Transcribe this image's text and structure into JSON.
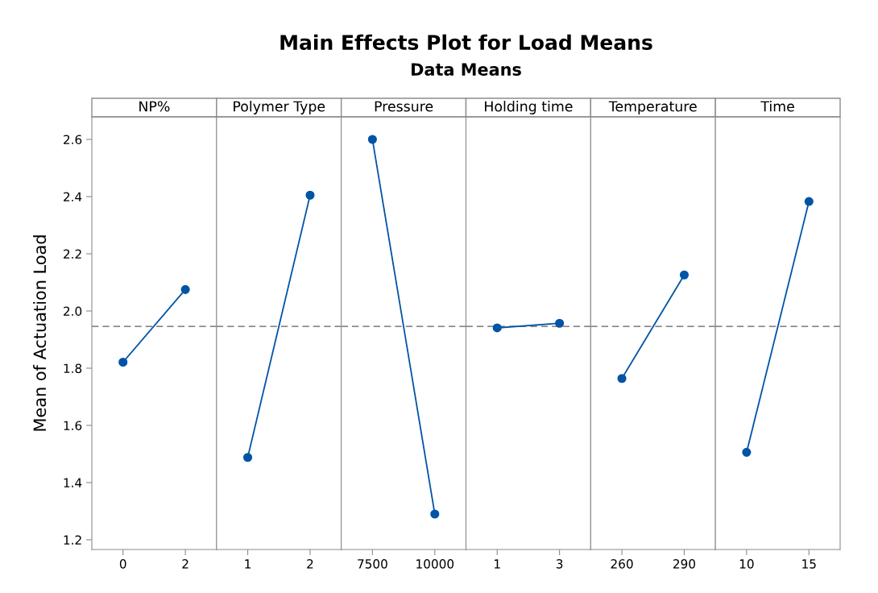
{
  "chart_data": [
    {
      "type": "other",
      "title": "Main Effects Plot for Load Means",
      "subtitle": "Data Means"
    },
    {
      "type": "line",
      "xlabel": "NP%",
      "ylabel": "Mean of Actuation Load",
      "categories": [
        "0",
        "2"
      ],
      "series": [
        {
          "color": "#0054a6",
          "values": [
            1.821,
            2.075
          ]
        }
      ],
      "ylim": [
        1.166,
        2.679
      ],
      "yticks": [
        1.2,
        1.4,
        1.6,
        1.8,
        {
          "value": 2,
          "label": "2.0"
        },
        2.2,
        2.4,
        2.6
      ],
      "ref_lines": [
        {
          "axis": "y",
          "value": 1.946,
          "color": "#8c8c8c",
          "line_style": "dashed"
        }
      ],
      "marker": "circle"
    },
    {
      "type": "line",
      "xlabel": "Polymer Type",
      "categories": [
        "1",
        "2"
      ],
      "series": [
        {
          "color": "#0054a6",
          "values": [
            1.488,
            2.405
          ]
        }
      ],
      "ylim": [
        1.166,
        2.679
      ],
      "tick_labels": "x",
      "ref_lines": [
        {
          "axis": "y",
          "value": 1.946,
          "color": "#8c8c8c",
          "line_style": "dashed"
        }
      ],
      "marker": "circle"
    },
    {
      "type": "line",
      "xlabel": "Pressure",
      "categories": [
        "7500",
        "10000"
      ],
      "series": [
        {
          "color": "#0054a6",
          "values": [
            2.6,
            1.29
          ]
        }
      ],
      "ylim": [
        1.166,
        2.679
      ],
      "tick_labels": "x",
      "ref_lines": [
        {
          "axis": "y",
          "value": 1.946,
          "color": "#8c8c8c",
          "line_style": "dashed"
        }
      ],
      "marker": "circle"
    },
    {
      "type": "line",
      "xlabel": "Holding time",
      "categories": [
        "1",
        "3"
      ],
      "series": [
        {
          "color": "#0054a6",
          "values": [
            1.941,
            1.957
          ]
        }
      ],
      "ylim": [
        1.166,
        2.679
      ],
      "tick_labels": "x",
      "ref_lines": [
        {
          "axis": "y",
          "value": 1.946,
          "color": "#8c8c8c",
          "line_style": "dashed"
        }
      ],
      "marker": "circle"
    },
    {
      "type": "line",
      "xlabel": "Temperature",
      "categories": [
        "260",
        "290"
      ],
      "series": [
        {
          "color": "#0054a6",
          "values": [
            1.764,
            2.126
          ]
        }
      ],
      "ylim": [
        1.166,
        2.679
      ],
      "tick_labels": "x",
      "ref_lines": [
        {
          "axis": "y",
          "value": 1.946,
          "color": "#8c8c8c",
          "line_style": "dashed"
        }
      ],
      "marker": "circle"
    },
    {
      "type": "line",
      "xlabel": "Time",
      "categories": [
        "10",
        "15"
      ],
      "series": [
        {
          "color": "#0054a6",
          "values": [
            1.506,
            2.383
          ]
        }
      ],
      "ylim": [
        1.166,
        2.679
      ],
      "tick_labels": "x",
      "ref_lines": [
        {
          "axis": "y",
          "value": 1.946,
          "color": "#8c8c8c",
          "line_style": "dashed"
        }
      ],
      "marker": "circle"
    }
  ]
}
